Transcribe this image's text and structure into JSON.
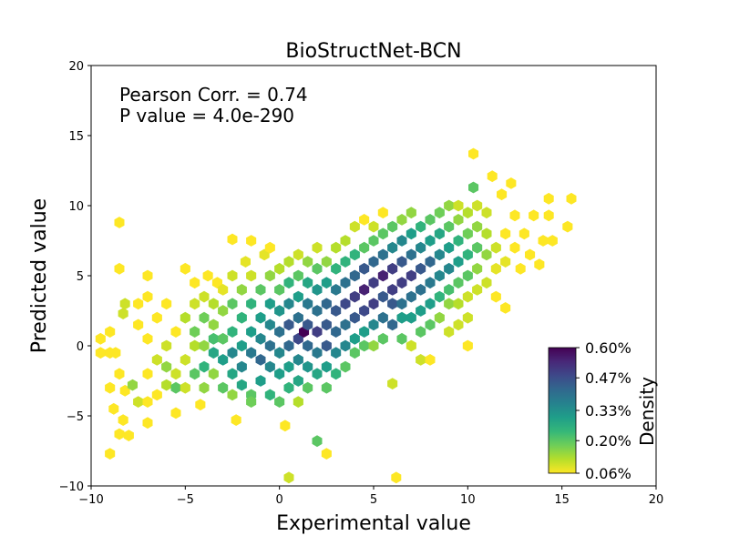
{
  "chart_data": {
    "type": "hexbin-scatter",
    "title": "BioStructNet-BCN",
    "xlabel": "Experimental value",
    "ylabel": "Predicted value",
    "xlim": [
      -10,
      20
    ],
    "ylim": [
      -10,
      20
    ],
    "xticks": [
      -10,
      -5,
      0,
      5,
      10,
      15,
      20
    ],
    "yticks": [
      -10,
      -5,
      0,
      5,
      10,
      15,
      20
    ],
    "xtick_labels": [
      "−10",
      "−5",
      "0",
      "5",
      "10",
      "15",
      "20"
    ],
    "ytick_labels": [
      "−10",
      "−5",
      "0",
      "5",
      "10",
      "15",
      "20"
    ],
    "annotations": [
      "Pearson Corr. = 0.74",
      "P value = 4.0e-290"
    ],
    "colorbar": {
      "label": "Density",
      "min": 0.06,
      "max": 0.6,
      "ticks": [
        0.06,
        0.2,
        0.33,
        0.47,
        0.6
      ],
      "tick_labels": [
        "0.06%",
        "0.20%",
        "0.33%",
        "0.47%",
        "0.60%"
      ],
      "colormap": "viridis_r",
      "stops": [
        "#fde725",
        "#b5de2b",
        "#6ece58",
        "#35b779",
        "#1f9e89",
        "#26828e",
        "#31688e",
        "#3e4989",
        "#482878",
        "#440154"
      ]
    },
    "hex_cells": [
      [
        -9.5,
        0.5,
        0.06
      ],
      [
        -9.5,
        -0.5,
        0.06
      ],
      [
        -9,
        -0.5,
        0.06
      ],
      [
        -9,
        1,
        0.06
      ],
      [
        -9,
        -3,
        0.06
      ],
      [
        -9,
        -7.7,
        0.06
      ],
      [
        -8.8,
        -4.5,
        0.06
      ],
      [
        -8.5,
        -6.3,
        0.06
      ],
      [
        -8.3,
        -5.3,
        0.06
      ],
      [
        -8.2,
        -3.2,
        0.06
      ],
      [
        -8,
        -6.4,
        0.06
      ],
      [
        -8.5,
        8.8,
        0.06
      ],
      [
        -8.5,
        5.5,
        0.06
      ],
      [
        -8.7,
        -0.5,
        0.06
      ],
      [
        -8.5,
        -2,
        0.06
      ],
      [
        -8.3,
        2.3,
        0.1
      ],
      [
        -8.2,
        3,
        0.1
      ],
      [
        -7.5,
        3,
        0.06
      ],
      [
        -7.8,
        -2.8,
        0.15
      ],
      [
        -7.5,
        -4,
        0.1
      ],
      [
        -7,
        -4,
        0.06
      ],
      [
        -7,
        -5.5,
        0.06
      ],
      [
        -7.5,
        1.5,
        0.06
      ],
      [
        -7,
        0.5,
        0.06
      ],
      [
        -7,
        -2,
        0.06
      ],
      [
        -7,
        3.5,
        0.06
      ],
      [
        -7,
        5,
        0.06
      ],
      [
        -6.5,
        2,
        0.06
      ],
      [
        -6.5,
        -1,
        0.1
      ],
      [
        -6.5,
        -3.5,
        0.06
      ],
      [
        -6,
        -2.8,
        0.12
      ],
      [
        -6,
        -1.5,
        0.15
      ],
      [
        -6,
        0,
        0.1
      ],
      [
        -6,
        3,
        0.06
      ],
      [
        -5.5,
        -2,
        0.1
      ],
      [
        -5.5,
        -3,
        0.2
      ],
      [
        -5.5,
        1,
        0.06
      ],
      [
        -5.5,
        -4.8,
        0.06
      ],
      [
        -5,
        2,
        0.12
      ],
      [
        -5,
        -1,
        0.1
      ],
      [
        -5,
        -3,
        0.1
      ],
      [
        -5,
        5.5,
        0.06
      ],
      [
        -4.5,
        0,
        0.12
      ],
      [
        -4.5,
        -2,
        0.2
      ],
      [
        -4.5,
        3,
        0.1
      ],
      [
        -4.5,
        4.5,
        0.06
      ],
      [
        -4.5,
        1,
        0.18
      ],
      [
        -4.2,
        -4.2,
        0.06
      ],
      [
        -4,
        -1.5,
        0.25
      ],
      [
        -4,
        0,
        0.15
      ],
      [
        -4,
        2,
        0.18
      ],
      [
        -4,
        3.5,
        0.1
      ],
      [
        -4,
        -3,
        0.15
      ],
      [
        -3.8,
        5,
        0.06
      ],
      [
        -3.5,
        -2,
        0.15
      ],
      [
        -3.5,
        0.5,
        0.22
      ],
      [
        -3.5,
        1.5,
        0.15
      ],
      [
        -3.5,
        -0.5,
        0.28
      ],
      [
        -3.5,
        3,
        0.12
      ],
      [
        -3.3,
        4.5,
        0.06
      ],
      [
        -3,
        -1,
        0.3
      ],
      [
        -3,
        0.5,
        0.2
      ],
      [
        -3,
        2.5,
        0.15
      ],
      [
        -3,
        -3,
        0.2
      ],
      [
        -3,
        4,
        0.08
      ],
      [
        -2.5,
        1,
        0.25
      ],
      [
        -2.5,
        -2,
        0.28
      ],
      [
        -2.5,
        -0.5,
        0.35
      ],
      [
        -2.5,
        3,
        0.2
      ],
      [
        -2.5,
        -3.5,
        0.15
      ],
      [
        -2.5,
        5,
        0.1
      ],
      [
        -2.3,
        -5.3,
        0.06
      ],
      [
        -2.5,
        7.6,
        0.06
      ],
      [
        -2,
        0,
        0.3
      ],
      [
        -2,
        2,
        0.25
      ],
      [
        -2,
        -1.5,
        0.35
      ],
      [
        -2,
        4,
        0.15
      ],
      [
        -2,
        -2.8,
        0.28
      ],
      [
        -1.8,
        6,
        0.08
      ],
      [
        -1.5,
        1,
        0.3
      ],
      [
        -1.5,
        -0.5,
        0.38
      ],
      [
        -1.5,
        3,
        0.25
      ],
      [
        -1.5,
        -3.5,
        0.2
      ],
      [
        -1.5,
        5,
        0.1
      ],
      [
        -1.5,
        7.5,
        0.06
      ],
      [
        -1.5,
        -4,
        0.18
      ],
      [
        -1,
        0.5,
        0.35
      ],
      [
        -1,
        2,
        0.3
      ],
      [
        -1,
        -1,
        0.42
      ],
      [
        -1,
        4,
        0.2
      ],
      [
        -1,
        -2.5,
        0.3
      ],
      [
        -0.8,
        6.5,
        0.08
      ],
      [
        -0.5,
        1.5,
        0.35
      ],
      [
        -0.5,
        0,
        0.4
      ],
      [
        -0.5,
        3,
        0.3
      ],
      [
        -0.5,
        -1.5,
        0.35
      ],
      [
        -0.5,
        5,
        0.15
      ],
      [
        -0.5,
        -3.5,
        0.25
      ],
      [
        -0.5,
        7,
        0.06
      ],
      [
        0,
        1,
        0.4
      ],
      [
        0,
        2.5,
        0.32
      ],
      [
        0,
        -0.5,
        0.35
      ],
      [
        0,
        4,
        0.2
      ],
      [
        0,
        -2,
        0.3
      ],
      [
        0,
        5.5,
        0.12
      ],
      [
        0,
        -4,
        0.2
      ],
      [
        0.3,
        -5.7,
        0.06
      ],
      [
        0.5,
        -9.4,
        0.1
      ],
      [
        0.5,
        1.5,
        0.45
      ],
      [
        0.5,
        3,
        0.35
      ],
      [
        0.5,
        0,
        0.42
      ],
      [
        0.5,
        -1.5,
        0.3
      ],
      [
        0.5,
        4.5,
        0.25
      ],
      [
        0.5,
        6,
        0.12
      ],
      [
        0.5,
        -3,
        0.25
      ],
      [
        1,
        0.5,
        0.48
      ],
      [
        1,
        2,
        0.4
      ],
      [
        1,
        -1,
        0.35
      ],
      [
        1,
        3.5,
        0.3
      ],
      [
        1,
        5,
        0.2
      ],
      [
        1,
        -2.5,
        0.28
      ],
      [
        1,
        6.5,
        0.1
      ],
      [
        1,
        -4,
        0.12
      ],
      [
        1.3,
        1,
        0.6
      ],
      [
        1.5,
        1.5,
        0.45
      ],
      [
        1.5,
        3,
        0.38
      ],
      [
        1.5,
        0,
        0.42
      ],
      [
        1.5,
        4.5,
        0.28
      ],
      [
        1.5,
        -1.5,
        0.32
      ],
      [
        1.5,
        6,
        0.15
      ],
      [
        1.5,
        -3,
        0.2
      ],
      [
        2,
        1,
        0.5
      ],
      [
        2,
        2.5,
        0.4
      ],
      [
        2,
        -0.5,
        0.38
      ],
      [
        2,
        4,
        0.32
      ],
      [
        2,
        5.5,
        0.2
      ],
      [
        2,
        -2,
        0.28
      ],
      [
        2,
        7,
        0.1
      ],
      [
        2,
        -6.8,
        0.2
      ],
      [
        2.5,
        0,
        0.45
      ],
      [
        2.5,
        1.5,
        0.45
      ],
      [
        2.5,
        3,
        0.42
      ],
      [
        2.5,
        4.5,
        0.3
      ],
      [
        2.5,
        -1.5,
        0.3
      ],
      [
        2.5,
        6,
        0.15
      ],
      [
        2.5,
        -3,
        0.2
      ],
      [
        2.5,
        -7.7,
        0.06
      ],
      [
        3,
        1,
        0.42
      ],
      [
        3,
        2.5,
        0.45
      ],
      [
        3,
        4,
        0.38
      ],
      [
        3,
        -0.5,
        0.35
      ],
      [
        3,
        5.5,
        0.25
      ],
      [
        3,
        -2,
        0.25
      ],
      [
        3,
        7,
        0.12
      ],
      [
        3.5,
        1.5,
        0.4
      ],
      [
        3.5,
        3,
        0.48
      ],
      [
        3.5,
        4.5,
        0.4
      ],
      [
        3.5,
        0,
        0.35
      ],
      [
        3.5,
        6,
        0.25
      ],
      [
        3.5,
        -1.5,
        0.2
      ],
      [
        3.5,
        7.5,
        0.12
      ],
      [
        4,
        2,
        0.45
      ],
      [
        4,
        3.5,
        0.5
      ],
      [
        4,
        5,
        0.42
      ],
      [
        4,
        0.5,
        0.3
      ],
      [
        4,
        6.5,
        0.25
      ],
      [
        4,
        -0.5,
        0.2
      ],
      [
        4,
        8.5,
        0.1
      ],
      [
        4.5,
        2.5,
        0.48
      ],
      [
        4.5,
        4,
        0.55
      ],
      [
        4.5,
        5.5,
        0.45
      ],
      [
        4.5,
        1,
        0.3
      ],
      [
        4.5,
        7,
        0.2
      ],
      [
        4.5,
        0,
        0.2
      ],
      [
        4.5,
        9,
        0.06
      ],
      [
        5,
        3,
        0.5
      ],
      [
        5,
        4.5,
        0.5
      ],
      [
        5,
        6,
        0.42
      ],
      [
        5,
        1.5,
        0.35
      ],
      [
        5,
        7.5,
        0.2
      ],
      [
        5,
        0,
        0.15
      ],
      [
        5,
        8.5,
        0.1
      ],
      [
        5.5,
        3.5,
        0.45
      ],
      [
        5.5,
        5,
        0.55
      ],
      [
        5.5,
        6.5,
        0.4
      ],
      [
        5.5,
        2,
        0.4
      ],
      [
        5.5,
        8,
        0.2
      ],
      [
        5.5,
        0.5,
        0.2
      ],
      [
        5.5,
        9.5,
        0.06
      ],
      [
        6,
        4,
        0.5
      ],
      [
        6,
        5.5,
        0.5
      ],
      [
        6,
        3,
        0.45
      ],
      [
        6,
        7,
        0.35
      ],
      [
        6,
        1.5,
        0.42
      ],
      [
        6,
        8.5,
        0.2
      ],
      [
        6,
        -2.7,
        0.1
      ],
      [
        6.2,
        -9.4,
        0.06
      ],
      [
        6.5,
        4.5,
        0.5
      ],
      [
        6.5,
        6,
        0.45
      ],
      [
        6.5,
        3,
        0.4
      ],
      [
        6.5,
        7.5,
        0.35
      ],
      [
        6.5,
        2,
        0.3
      ],
      [
        6.5,
        9,
        0.15
      ],
      [
        6.5,
        0.5,
        0.2
      ],
      [
        7,
        5,
        0.5
      ],
      [
        7,
        6.5,
        0.4
      ],
      [
        7,
        3.5,
        0.4
      ],
      [
        7,
        8,
        0.3
      ],
      [
        7,
        2,
        0.3
      ],
      [
        7,
        9.5,
        0.15
      ],
      [
        7,
        0,
        0.1
      ],
      [
        7.5,
        5.5,
        0.45
      ],
      [
        7.5,
        4,
        0.4
      ],
      [
        7.5,
        7,
        0.35
      ],
      [
        7.5,
        2.5,
        0.3
      ],
      [
        7.5,
        8.5,
        0.25
      ],
      [
        7.5,
        1,
        0.2
      ],
      [
        7.5,
        -1,
        0.1
      ],
      [
        8,
        6,
        0.42
      ],
      [
        8,
        4.5,
        0.38
      ],
      [
        8,
        7.5,
        0.3
      ],
      [
        8,
        3,
        0.3
      ],
      [
        8,
        9,
        0.2
      ],
      [
        8,
        1.5,
        0.2
      ],
      [
        8,
        -1,
        0.06
      ],
      [
        8.5,
        5,
        0.35
      ],
      [
        8.5,
        6.5,
        0.35
      ],
      [
        8.5,
        3.5,
        0.25
      ],
      [
        8.5,
        8,
        0.28
      ],
      [
        8.5,
        9.5,
        0.18
      ],
      [
        8.5,
        2,
        0.15
      ],
      [
        9,
        5.5,
        0.35
      ],
      [
        9,
        7,
        0.3
      ],
      [
        9,
        4,
        0.22
      ],
      [
        9,
        8.5,
        0.2
      ],
      [
        9,
        3,
        0.15
      ],
      [
        9,
        10,
        0.15
      ],
      [
        9,
        1,
        0.1
      ],
      [
        9.5,
        6,
        0.3
      ],
      [
        9.5,
        4.5,
        0.2
      ],
      [
        9.5,
        7.5,
        0.25
      ],
      [
        9.5,
        9,
        0.15
      ],
      [
        9.5,
        3,
        0.12
      ],
      [
        9.5,
        10,
        0.1
      ],
      [
        9.5,
        1.5,
        0.1
      ],
      [
        10,
        6.5,
        0.25
      ],
      [
        10,
        5,
        0.2
      ],
      [
        10,
        8,
        0.18
      ],
      [
        10,
        9.5,
        0.12
      ],
      [
        10,
        3.5,
        0.1
      ],
      [
        10,
        2,
        0.1
      ],
      [
        10,
        0,
        0.06
      ],
      [
        10.3,
        11.3,
        0.2
      ],
      [
        10.3,
        13.7,
        0.06
      ],
      [
        10.5,
        7,
        0.2
      ],
      [
        10.5,
        5.5,
        0.15
      ],
      [
        10.5,
        8.5,
        0.15
      ],
      [
        10.5,
        10,
        0.1
      ],
      [
        10.5,
        4,
        0.1
      ],
      [
        11,
        6.5,
        0.15
      ],
      [
        11,
        8,
        0.12
      ],
      [
        11,
        9.5,
        0.1
      ],
      [
        11,
        4.5,
        0.1
      ],
      [
        11.3,
        12.1,
        0.06
      ],
      [
        11.5,
        7,
        0.1
      ],
      [
        11.5,
        5.5,
        0.08
      ],
      [
        11.5,
        3.5,
        0.06
      ],
      [
        11.8,
        10.8,
        0.06
      ],
      [
        12,
        8,
        0.06
      ],
      [
        12,
        6,
        0.08
      ],
      [
        12,
        2.7,
        0.06
      ],
      [
        12.3,
        11.6,
        0.06
      ],
      [
        12.5,
        7,
        0.06
      ],
      [
        12.5,
        9.3,
        0.06
      ],
      [
        12.8,
        5.5,
        0.06
      ],
      [
        13,
        8,
        0.06
      ],
      [
        13.3,
        6.5,
        0.06
      ],
      [
        13.8,
        5.8,
        0.06
      ],
      [
        13.5,
        9.3,
        0.06
      ],
      [
        14,
        7.5,
        0.06
      ],
      [
        14.3,
        9.3,
        0.06
      ],
      [
        14.3,
        10.5,
        0.06
      ],
      [
        14.5,
        7.5,
        0.06
      ],
      [
        15.3,
        8.5,
        0.06
      ],
      [
        15.5,
        10.5,
        0.06
      ]
    ]
  }
}
